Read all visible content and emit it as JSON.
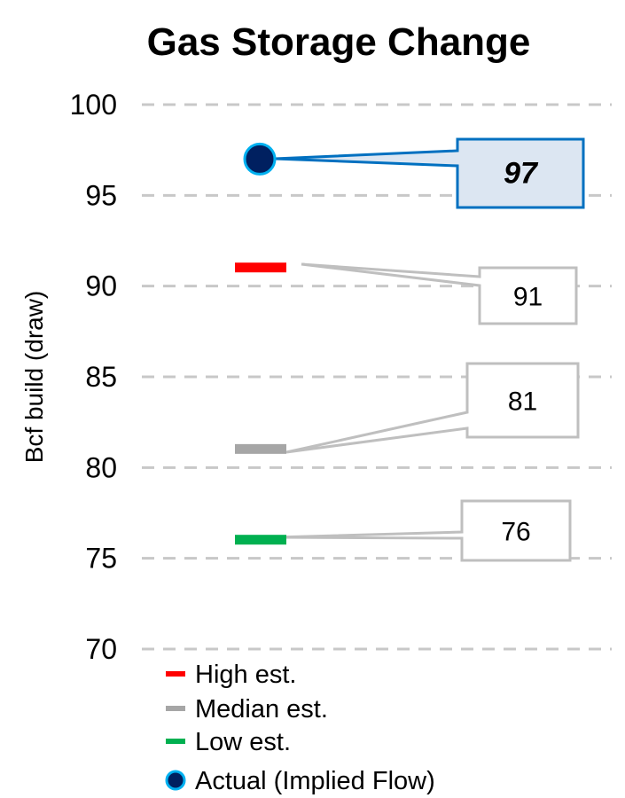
{
  "chart_data": {
    "type": "scatter",
    "title": "Gas Storage Change",
    "ylabel": "Bcf build (draw)",
    "xlabel": "",
    "ylim": [
      70,
      100
    ],
    "yticks": [
      100,
      95,
      90,
      85,
      80,
      75,
      70
    ],
    "grid": true,
    "grid_color": "#c8c8c8",
    "legend_position": "bottom-left",
    "series": [
      {
        "name": "High est.",
        "value": 91,
        "label": "91",
        "color": "#ff0000",
        "marker": "dash"
      },
      {
        "name": "Median est.",
        "value": 81,
        "label": "81",
        "color": "#a6a6a6",
        "marker": "dash"
      },
      {
        "name": "Low est.",
        "value": 76,
        "label": "76",
        "color": "#00b050",
        "marker": "dash"
      },
      {
        "name": "Actual (Implied Flow)",
        "value": 97,
        "label": "97",
        "color": "#002060",
        "edge_color": "#00b0f0",
        "marker": "circle"
      }
    ]
  }
}
